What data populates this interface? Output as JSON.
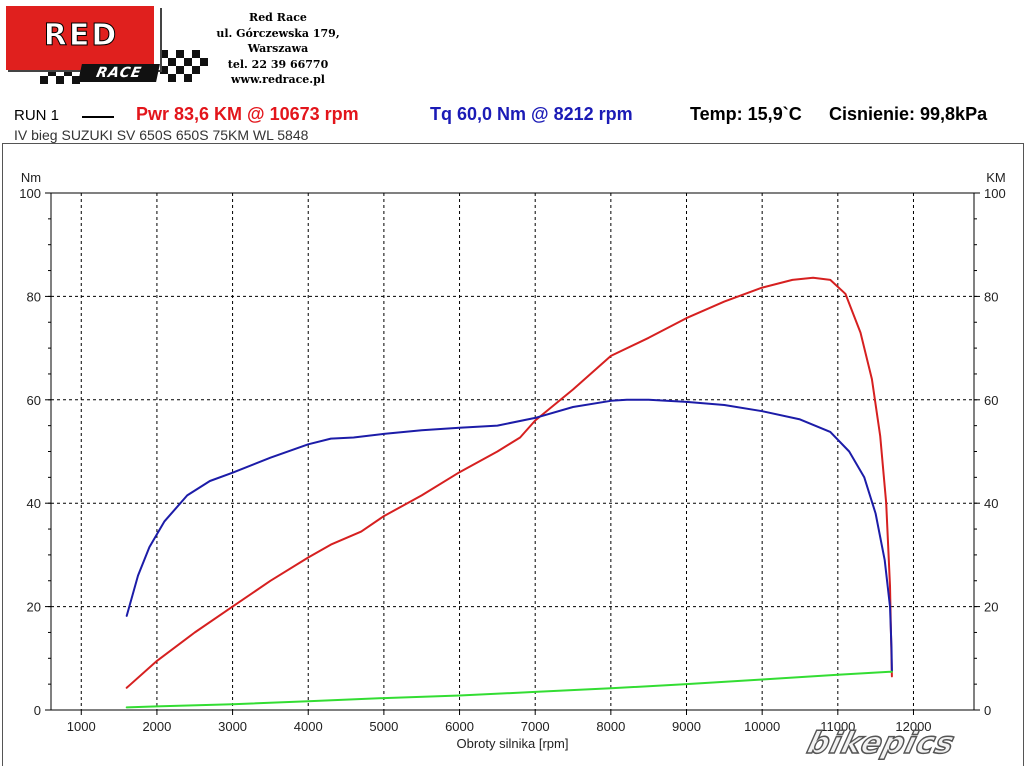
{
  "logo": {
    "top_text": "RED",
    "bottom_text": "RACE"
  },
  "company": {
    "name": "Red Race",
    "address": "ul. Górczewska 179,",
    "city": "Warszawa",
    "phone": "tel. 22 39 66770",
    "website": "www.redrace.pl"
  },
  "header": {
    "run_label": "RUN 1",
    "power": "Pwr  83,6 KM @ 10673 rpm",
    "torque": "Tq 60,0 Nm @ 8212 rpm",
    "temp": "Temp: 15,9`C",
    "pressure": "Cisnienie: 99,8kPa",
    "subtitle": "IV bieg SUZUKI SV 650S 650S 75KM WL 5848"
  },
  "watermark": "bikepics",
  "colors": {
    "power": "#d62020",
    "torque": "#1c1ca8",
    "third": "#33dd33",
    "grid": "#000000",
    "logo_red": "#e0201e"
  },
  "chart_data": {
    "type": "line",
    "xlabel": "Obroty silnika [rpm]",
    "ylabel_left": "Nm",
    "ylabel_right": "KM",
    "xlim": [
      600,
      12800
    ],
    "ylim": [
      0,
      100
    ],
    "x_ticks": [
      1000,
      2000,
      3000,
      4000,
      5000,
      6000,
      7000,
      8000,
      9000,
      10000,
      11000,
      12000
    ],
    "y_ticks": [
      0,
      20,
      40,
      60,
      80,
      100
    ],
    "grid": true,
    "series": [
      {
        "axis": "right",
        "color": "#d62020",
        "points": [
          [
            1600,
            4.3
          ],
          [
            2000,
            9.5
          ],
          [
            2500,
            15
          ],
          [
            3000,
            20
          ],
          [
            3500,
            25
          ],
          [
            4000,
            29.5
          ],
          [
            4300,
            32
          ],
          [
            4700,
            34.5
          ],
          [
            5000,
            37.5
          ],
          [
            5500,
            41.5
          ],
          [
            6000,
            46
          ],
          [
            6500,
            50
          ],
          [
            6800,
            52.7
          ],
          [
            7000,
            56
          ],
          [
            7500,
            62
          ],
          [
            8000,
            68.5
          ],
          [
            8500,
            72
          ],
          [
            9000,
            75.8
          ],
          [
            9500,
            79
          ],
          [
            10000,
            81.7
          ],
          [
            10400,
            83.2
          ],
          [
            10673,
            83.6
          ],
          [
            10900,
            83.2
          ],
          [
            11100,
            80.5
          ],
          [
            11300,
            73
          ],
          [
            11450,
            64
          ],
          [
            11560,
            53
          ],
          [
            11640,
            40
          ],
          [
            11690,
            24
          ],
          [
            11710,
            10
          ],
          [
            11715,
            6.5
          ]
        ]
      },
      {
        "axis": "left",
        "color": "#1c1ca8",
        "points": [
          [
            1600,
            18.2
          ],
          [
            1750,
            26
          ],
          [
            1900,
            31.5
          ],
          [
            2100,
            36.5
          ],
          [
            2400,
            41.5
          ],
          [
            2700,
            44.3
          ],
          [
            3000,
            45.9
          ],
          [
            3500,
            48.8
          ],
          [
            4000,
            51.4
          ],
          [
            4300,
            52.5
          ],
          [
            4600,
            52.7
          ],
          [
            5000,
            53.4
          ],
          [
            5500,
            54.1
          ],
          [
            6000,
            54.6
          ],
          [
            6500,
            55
          ],
          [
            7000,
            56.5
          ],
          [
            7500,
            58.6
          ],
          [
            8000,
            59.8
          ],
          [
            8212,
            60
          ],
          [
            8500,
            60
          ],
          [
            9000,
            59.6
          ],
          [
            9500,
            59
          ],
          [
            10000,
            57.8
          ],
          [
            10500,
            56.2
          ],
          [
            10900,
            53.8
          ],
          [
            11150,
            50
          ],
          [
            11350,
            45
          ],
          [
            11500,
            38
          ],
          [
            11620,
            29
          ],
          [
            11690,
            20
          ],
          [
            11710,
            12
          ],
          [
            11715,
            7.5
          ]
        ]
      },
      {
        "axis": "left",
        "color": "#33dd33",
        "points": [
          [
            1600,
            0.5
          ],
          [
            2000,
            0.7
          ],
          [
            3000,
            1.1
          ],
          [
            4000,
            1.7
          ],
          [
            5000,
            2.3
          ],
          [
            6000,
            2.8
          ],
          [
            7000,
            3.5
          ],
          [
            8000,
            4.2
          ],
          [
            9000,
            5
          ],
          [
            10000,
            5.9
          ],
          [
            11000,
            6.8
          ],
          [
            11715,
            7.4
          ]
        ]
      }
    ]
  }
}
